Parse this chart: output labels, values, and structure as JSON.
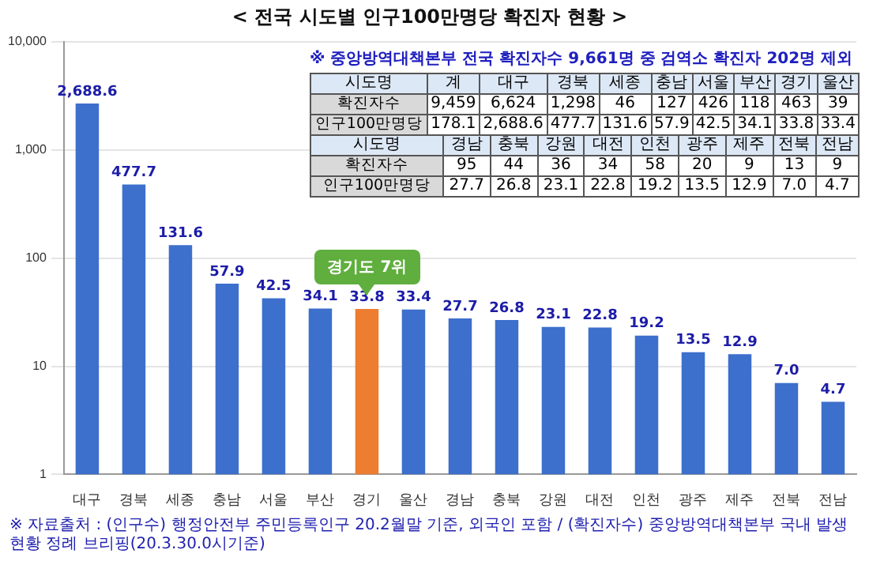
{
  "chart_data": [
    {
      "type": "bar",
      "title": "< 전국 시도별 인구100만명당 확진자 현황 >",
      "categories": [
        "대구",
        "경북",
        "세종",
        "충남",
        "서울",
        "부산",
        "경기",
        "울산",
        "경남",
        "충북",
        "강원",
        "대전",
        "인천",
        "광주",
        "제주",
        "전북",
        "전남"
      ],
      "values": [
        2688.6,
        477.7,
        131.6,
        57.9,
        42.5,
        34.1,
        33.8,
        33.4,
        27.7,
        26.8,
        23.1,
        22.8,
        19.2,
        13.5,
        12.9,
        7.0,
        4.7
      ],
      "value_labels": [
        "2,688.6",
        "477.7",
        "131.6",
        "57.9",
        "42.5",
        "34.1",
        "33.8",
        "33.4",
        "27.7",
        "26.8",
        "23.1",
        "22.8",
        "19.2",
        "13.5",
        "12.9",
        "7.0",
        "4.7"
      ],
      "colors": [
        "#3d6fcc",
        "#3d6fcc",
        "#3d6fcc",
        "#3d6fcc",
        "#3d6fcc",
        "#3d6fcc",
        "#ed7d31",
        "#3d6fcc",
        "#3d6fcc",
        "#3d6fcc",
        "#3d6fcc",
        "#3d6fcc",
        "#3d6fcc",
        "#3d6fcc",
        "#3d6fcc",
        "#3d6fcc",
        "#3d6fcc"
      ],
      "log": true,
      "ylim": [
        1,
        10000
      ],
      "yticks": [
        1,
        10,
        100,
        {
          "value": 1000,
          "label": "1,000"
        },
        {
          "value": 10000,
          "label": "10,000"
        }
      ],
      "grid": "y",
      "legend": false,
      "annotations": [
        {
          "text": "경기도 7위",
          "x": "경기",
          "y": 33.8
        },
        "※ 자료출처 : (인구수) 행정안전부 주민등록인구 20.2월말 기준, 외국인 포함 / (확진자수) 중앙방역대책본부 국내 발생 현황 정례 브리핑(20.3.30.0시기준)"
      ]
    },
    {
      "type": "other",
      "title": "※ 중앙방역대책본부 전국 확진자수 9,661명 중 검역소 확진자 202명 제외",
      "xlabel": "시도명",
      "categories": [
        "계",
        "대구",
        "경북",
        "세종",
        "충남",
        "서울",
        "부산",
        "경기",
        "울산"
      ],
      "series": [
        {
          "name": "확진자수",
          "values": [
            9459,
            6624,
            1298,
            46,
            127,
            426,
            118,
            463,
            39
          ],
          "value_labels": [
            "9,459",
            "6,624",
            "1,298",
            "46",
            "127",
            "426",
            "118",
            "463",
            "39"
          ]
        },
        {
          "name": "인구100만명당",
          "values": [
            178.1,
            2688.6,
            477.7,
            131.6,
            57.9,
            42.5,
            34.1,
            33.8,
            33.4
          ],
          "value_labels": [
            "178.1",
            "2,688.6",
            "477.7",
            "131.6",
            "57.9",
            "42.5",
            "34.1",
            "33.8",
            "33.4"
          ]
        }
      ]
    },
    {
      "type": "other",
      "xlabel": "시도명",
      "categories": [
        "경남",
        "충북",
        "강원",
        "대전",
        "인천",
        "광주",
        "제주",
        "전북",
        "전남"
      ],
      "series": [
        {
          "name": "확진자수",
          "values": [
            95,
            44,
            36,
            34,
            58,
            20,
            9,
            13,
            9
          ],
          "value_labels": [
            "95",
            "44",
            "36",
            "34",
            "58",
            "20",
            "9",
            "13",
            "9"
          ]
        },
        {
          "name": "인구100만명당",
          "values": [
            27.7,
            26.8,
            23.1,
            22.8,
            19.2,
            13.5,
            12.9,
            7.0,
            4.7
          ],
          "value_labels": [
            "27.7",
            "26.8",
            "23.1",
            "22.8",
            "19.2",
            "13.5",
            "12.9",
            "7.0",
            "4.7"
          ]
        }
      ]
    }
  ]
}
